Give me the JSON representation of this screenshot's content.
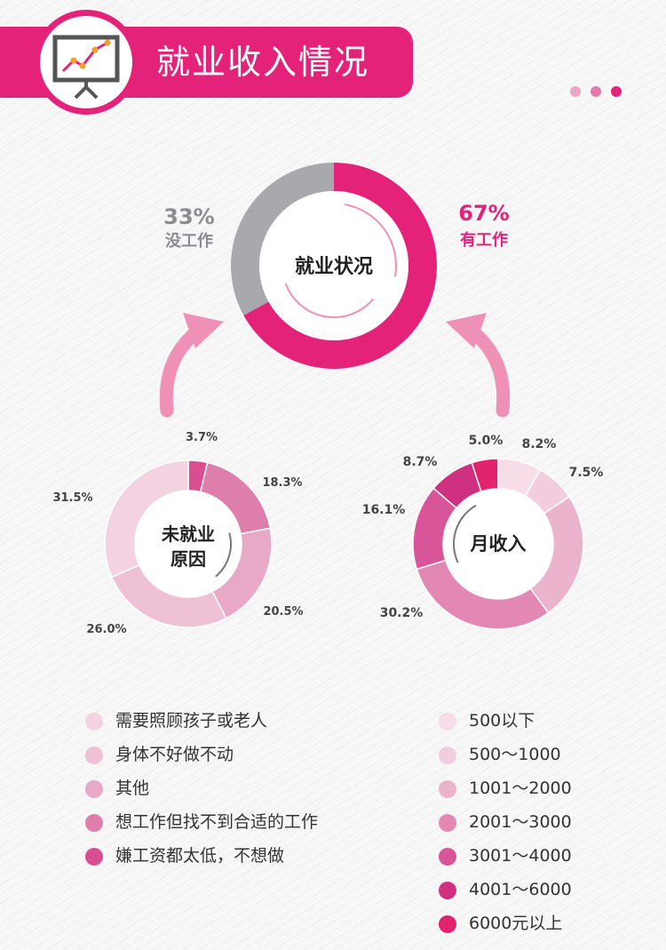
{
  "header": {
    "title": "就业收入情况",
    "icon": "presentation-chart-icon"
  },
  "colors": {
    "brand": "#e4227a",
    "gray": "#a7a9ac",
    "dots": [
      "#eaa6c3",
      "#e57aa8",
      "#e4227a"
    ],
    "reasons": [
      "#f3d3e1",
      "#efc1d5",
      "#e8a9c6",
      "#de7eab",
      "#d84e8f"
    ],
    "income": [
      "#f6dde8",
      "#f2cdde",
      "#ebb3cc",
      "#e288b2",
      "#d9559a",
      "#cf3180",
      "#e2236e"
    ]
  },
  "chart_data": [
    {
      "type": "pie",
      "title": "就业状况",
      "slices": [
        {
          "value": 67,
          "label": "67%",
          "name": "有工作"
        },
        {
          "value": 33,
          "label": "33%",
          "name": "没工作"
        }
      ]
    },
    {
      "type": "pie",
      "title": [
        "未就业",
        "原因"
      ],
      "slices": [
        {
          "value": 3.7,
          "label": "3.7%",
          "name": "嫌工资都太低，不想做"
        },
        {
          "value": 18.3,
          "label": "18.3%",
          "name": "想工作但找不到合适的工作"
        },
        {
          "value": 20.5,
          "label": "20.5%",
          "name": "其他"
        },
        {
          "value": 26.0,
          "label": "26.0%",
          "name": "身体不好做不动"
        },
        {
          "value": 31.5,
          "label": "31.5%",
          "name": "需要照顾孩子或老人"
        }
      ],
      "legend": [
        "需要照顾孩子或老人",
        "身体不好做不动",
        "其他",
        "想工作但找不到合适的工作",
        "嫌工资都太低，不想做"
      ]
    },
    {
      "type": "pie",
      "title": "月收入",
      "slices": [
        {
          "value": 8.2,
          "label": "8.2%",
          "name": "500以下"
        },
        {
          "value": 7.5,
          "label": "7.5%",
          "name": "500～1000"
        },
        {
          "value": 24.3,
          "label": "",
          "name": "1001～2000"
        },
        {
          "value": 30.2,
          "label": "30.2%",
          "name": "2001～3000"
        },
        {
          "value": 16.1,
          "label": "16.1%",
          "name": "3001～4000"
        },
        {
          "value": 8.7,
          "label": "8.7%",
          "name": "4001～6000"
        },
        {
          "value": 5.0,
          "label": "5.0%",
          "name": "6000元以上"
        }
      ],
      "legend": [
        "500以下",
        "500～1000",
        "1001～2000",
        "2001～3000",
        "3001～4000",
        "4001～6000",
        "6000元以上"
      ]
    }
  ]
}
